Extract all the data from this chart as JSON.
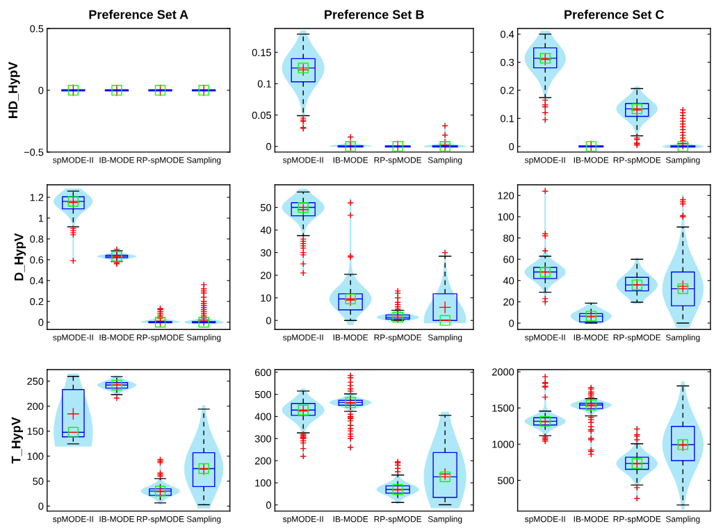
{
  "chart_data": [
    {
      "type": "box",
      "title": "Preference Set A",
      "ylabel": "HD_HypV",
      "categories": [
        "spMODE-II",
        "IB-MODE",
        "RP-spMODE",
        "Sampling"
      ],
      "ylim": [
        -0.5,
        0.5
      ],
      "yticks": [
        -0.5,
        0,
        0.5
      ],
      "boxes": [
        {
          "low": 0,
          "q1": 0,
          "median": 0,
          "q3": 0,
          "high": 0,
          "mean": 0
        },
        {
          "low": 0,
          "q1": 0,
          "median": 0,
          "q3": 0,
          "high": 0,
          "mean": 0
        },
        {
          "low": 0,
          "q1": 0,
          "median": 0,
          "q3": 0,
          "high": 0,
          "mean": 0
        },
        {
          "low": 0,
          "q1": 0,
          "median": 0,
          "q3": 0,
          "high": 0,
          "mean": 0
        }
      ]
    },
    {
      "type": "box",
      "title": "Preference Set B",
      "categories": [
        "spMODE-II",
        "IB-MODE",
        "RP-spMODE",
        "Sampling"
      ],
      "ylim": [
        -0.009,
        0.188
      ],
      "yticks": [
        0,
        0.05,
        0.1,
        0.15
      ],
      "boxes": [
        {
          "low": 0.049,
          "q1": 0.103,
          "median": 0.125,
          "q3": 0.14,
          "high": 0.179,
          "mean": 0.122,
          "outliers": [
            0.045,
            0.042,
            0.04,
            0.03,
            0.029
          ]
        },
        {
          "low": 0,
          "q1": 0,
          "median": 0,
          "q3": 0,
          "high": 0,
          "mean": 0,
          "outliers": [
            0.015
          ]
        },
        {
          "low": 0,
          "q1": 0,
          "median": 0,
          "q3": 0,
          "high": 0,
          "mean": 0
        },
        {
          "low": 0,
          "q1": 0,
          "median": 0,
          "q3": 0,
          "high": 0,
          "mean": 0.002,
          "outliers": [
            0.033,
            0.018
          ]
        }
      ]
    },
    {
      "type": "box",
      "title": "Preference Set C",
      "categories": [
        "spMODE-II",
        "IB-MODE",
        "RP-spMODE",
        "Sampling"
      ],
      "ylim": [
        -0.02,
        0.42
      ],
      "yticks": [
        0,
        0.1,
        0.2,
        0.3,
        0.4
      ],
      "boxes": [
        {
          "low": 0.174,
          "q1": 0.28,
          "median": 0.314,
          "q3": 0.351,
          "high": 0.4,
          "mean": 0.31,
          "outliers": [
            0.165,
            0.148,
            0.141,
            0.12,
            0.095
          ]
        },
        {
          "low": 0,
          "q1": 0,
          "median": 0,
          "q3": 0,
          "high": 0,
          "mean": 0
        },
        {
          "low": 0.038,
          "q1": 0.107,
          "median": 0.134,
          "q3": 0.153,
          "high": 0.206,
          "mean": 0.13,
          "outliers": [
            0.03,
            0.025,
            0.012,
            0.01,
            0.005
          ]
        },
        {
          "low": 0,
          "q1": 0,
          "median": 0,
          "q3": 0,
          "high": 0,
          "mean": 0.01,
          "outliers": [
            0.02,
            0.03,
            0.04,
            0.05,
            0.06,
            0.07,
            0.08,
            0.09,
            0.1,
            0.11,
            0.12,
            0.13
          ]
        }
      ]
    },
    {
      "type": "box",
      "ylabel": "D_HypV",
      "categories": [
        "spMODE-II",
        "IB-MODE",
        "RP-spMODE",
        "Sampling"
      ],
      "ylim": [
        -0.07,
        1.32
      ],
      "yticks": [
        0,
        0.2,
        0.4,
        0.6,
        0.8,
        1,
        1.2
      ],
      "boxes": [
        {
          "low": 0.916,
          "q1": 1.089,
          "median": 1.161,
          "q3": 1.205,
          "high": 1.259,
          "mean": 1.15,
          "outliers": [
            0.9,
            0.88,
            0.86,
            0.84,
            0.59
          ]
        },
        {
          "low": 0.582,
          "q1": 0.62,
          "median": 0.632,
          "q3": 0.643,
          "high": 0.686,
          "mean": 0.63,
          "outliers": [
            0.7,
            0.57,
            0.56
          ]
        },
        {
          "low": 0,
          "q1": 0,
          "median": 0,
          "q3": 0,
          "high": 0,
          "mean": 0.01,
          "outliers": [
            0.04,
            0.06,
            0.08,
            0.1,
            0.12,
            0.13
          ]
        },
        {
          "low": 0,
          "q1": 0,
          "median": 0,
          "q3": 0,
          "high": 0,
          "mean": 0.02,
          "outliers": [
            0.04,
            0.06,
            0.08,
            0.1,
            0.12,
            0.14,
            0.16,
            0.18,
            0.2,
            0.24,
            0.28,
            0.3,
            0.32,
            0.36
          ]
        }
      ]
    },
    {
      "type": "box",
      "categories": [
        "spMODE-II",
        "IB-MODE",
        "RP-spMODE",
        "Sampling"
      ],
      "ylim": [
        -4,
        60
      ],
      "yticks": [
        0,
        10,
        20,
        30,
        40,
        50
      ],
      "boxes": [
        {
          "low": 37.5,
          "q1": 46.3,
          "median": 50,
          "q3": 52.1,
          "high": 56.8,
          "mean": 49,
          "outliers": [
            36,
            35,
            34,
            33,
            32,
            30,
            29,
            25,
            21
          ]
        },
        {
          "low": 0,
          "q1": 4.7,
          "median": 9.5,
          "q3": 11.8,
          "high": 20.4,
          "mean": 9,
          "outliers": [
            52,
            46.5,
            28.5,
            28
          ]
        },
        {
          "low": 0,
          "q1": 0.6,
          "median": 1.4,
          "q3": 2.4,
          "high": 4.5,
          "mean": 1.5,
          "outliers": [
            13,
            12,
            10,
            8,
            7,
            6,
            5
          ]
        },
        {
          "low": 0,
          "q1": 0,
          "median": 0,
          "q3": 11.8,
          "high": 28.4,
          "mean": 5.8,
          "outliers": [
            30
          ]
        }
      ]
    },
    {
      "type": "box",
      "categories": [
        "spMODE-II",
        "IB-MODE",
        "RP-spMODE",
        "Sampling"
      ],
      "ylim": [
        -6,
        130
      ],
      "yticks": [
        0,
        20,
        40,
        60,
        80,
        100,
        120
      ],
      "boxes": [
        {
          "low": 29,
          "q1": 41.9,
          "median": 48,
          "q3": 52.4,
          "high": 62.9,
          "mean": 48,
          "outliers": [
            124,
            84,
            82,
            68,
            23,
            20
          ]
        },
        {
          "low": 0,
          "q1": 1.1,
          "median": 6.5,
          "q3": 8.9,
          "high": 18.7,
          "mean": 6
        },
        {
          "low": 19.6,
          "q1": 30.3,
          "median": 35.9,
          "q3": 43,
          "high": 60,
          "mean": 36
        },
        {
          "low": 0,
          "q1": 16.3,
          "median": 32.3,
          "q3": 48,
          "high": 90.3,
          "mean": 34.6,
          "outliers": [
            116,
            114,
            112,
            101,
            100
          ]
        }
      ]
    },
    {
      "type": "box",
      "ylabel": "T_HypV",
      "categories": [
        "spMODE-II",
        "IB-MODE",
        "RP-spMODE",
        "Sampling"
      ],
      "ylim": [
        -10,
        273
      ],
      "yticks": [
        0,
        50,
        100,
        150,
        200,
        250
      ],
      "boxes": [
        {
          "low": 124.5,
          "q1": 138.6,
          "median": 147.7,
          "q3": 233,
          "high": 259.5,
          "mean": 184.5
        },
        {
          "low": 223,
          "q1": 236,
          "median": 242,
          "q3": 247,
          "high": 259,
          "mean": 242,
          "outliers": [
            216
          ]
        },
        {
          "low": 6.4,
          "q1": 21.4,
          "median": 30,
          "q3": 34.5,
          "high": 55,
          "mean": 29,
          "outliers": [
            93,
            90,
            87,
            66,
            63,
            60
          ]
        },
        {
          "low": 2.7,
          "q1": 39,
          "median": 75,
          "q3": 106.8,
          "high": 194,
          "mean": 74
        }
      ]
    },
    {
      "type": "box",
      "categories": [
        "spMODE-II",
        "IB-MODE",
        "RP-spMODE",
        "Sampling"
      ],
      "ylim": [
        -28,
        612
      ],
      "yticks": [
        0,
        100,
        200,
        300,
        400,
        500,
        600
      ],
      "boxes": [
        {
          "low": 326,
          "q1": 405,
          "median": 429,
          "q3": 459,
          "high": 515,
          "mean": 425,
          "outliers": [
            320,
            315,
            310,
            305,
            300,
            290,
            280,
            255,
            220
          ]
        },
        {
          "low": 423,
          "q1": 451,
          "median": 463,
          "q3": 473,
          "high": 502,
          "mean": 460,
          "outliers": [
            585,
            575,
            555,
            540,
            525,
            515,
            410,
            400,
            395,
            390,
            380,
            360,
            345,
            335,
            320,
            310,
            300,
            260
          ]
        },
        {
          "low": 11,
          "q1": 53,
          "median": 70,
          "q3": 86,
          "high": 135,
          "mean": 68,
          "outliers": [
            195,
            190,
            180,
            165,
            150
          ]
        },
        {
          "low": 1,
          "q1": 34,
          "median": 127,
          "q3": 237,
          "high": 405,
          "mean": 140
        }
      ]
    },
    {
      "type": "box",
      "categories": [
        "spMODE-II",
        "IB-MODE",
        "RP-spMODE",
        "Sampling"
      ],
      "ylim": [
        75,
        2030
      ],
      "yticks": [
        500,
        1000,
        1500,
        2000
      ],
      "boxes": [
        {
          "low": 1117,
          "q1": 1264,
          "median": 1316,
          "q3": 1365,
          "high": 1457,
          "mean": 1310,
          "outliers": [
            1930,
            1850,
            1840,
            1800,
            1790,
            1650,
            1100,
            1080,
            1060,
            1040
          ]
        },
        {
          "low": 1390,
          "q1": 1491,
          "median": 1540,
          "q3": 1564,
          "high": 1629,
          "mean": 1530,
          "outliers": [
            1780,
            1760,
            1720,
            1700,
            1680,
            1650,
            1370,
            1340,
            1300,
            1240,
            1200,
            1180,
            1080,
            1060,
            920,
            900,
            860
          ]
        },
        {
          "low": 436,
          "q1": 653,
          "median": 733,
          "q3": 819,
          "high": 1006,
          "mean": 730,
          "outliers": [
            1210,
            1130,
            1110,
            1060,
            400,
            250
          ]
        },
        {
          "low": 160,
          "q1": 773,
          "median": 994,
          "q3": 1245,
          "high": 1804,
          "mean": 985
        }
      ]
    }
  ]
}
